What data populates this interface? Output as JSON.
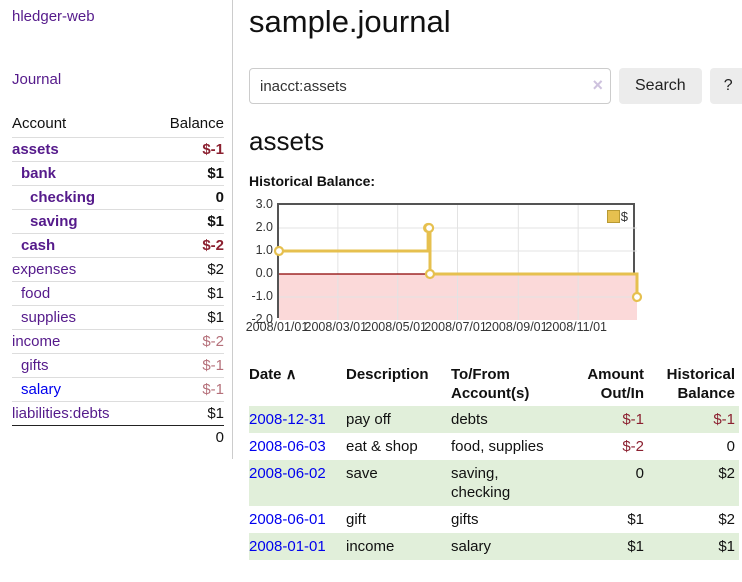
{
  "app": {
    "brand": "hledger-web",
    "nav_journal": "Journal"
  },
  "colors": {
    "link_purple": "#551a8b",
    "link_blue": "#0000ee",
    "negative_strong": "#8b2030",
    "negative_muted": "#b5707a",
    "row_green": "#e1efda",
    "accent_gold": "#e6c04f"
  },
  "sidebar": {
    "header": {
      "account": "Account",
      "balance": "Balance"
    },
    "accounts": [
      {
        "name": "assets",
        "balance": "$-1",
        "indent": 0,
        "bold": true,
        "unvisited": false
      },
      {
        "name": "bank",
        "balance": "$1",
        "indent": 1,
        "bold": true,
        "unvisited": false
      },
      {
        "name": "checking",
        "balance": "0",
        "indent": 2,
        "bold": true,
        "unvisited": false
      },
      {
        "name": "saving",
        "balance": "$1",
        "indent": 2,
        "bold": true,
        "unvisited": false
      },
      {
        "name": "cash",
        "balance": "$-2",
        "indent": 1,
        "bold": true,
        "unvisited": false
      },
      {
        "name": "expenses",
        "balance": "$2",
        "indent": 0,
        "bold": false,
        "unvisited": false
      },
      {
        "name": "food",
        "balance": "$1",
        "indent": 1,
        "bold": false,
        "unvisited": false
      },
      {
        "name": "supplies",
        "balance": "$1",
        "indent": 1,
        "bold": false,
        "unvisited": false
      },
      {
        "name": "income",
        "balance": "$-2",
        "indent": 0,
        "bold": false,
        "unvisited": false
      },
      {
        "name": "gifts",
        "balance": "$-1",
        "indent": 1,
        "bold": false,
        "unvisited": false
      },
      {
        "name": "salary",
        "balance": "$-1",
        "indent": 1,
        "bold": false,
        "unvisited": true
      },
      {
        "name": "liabilities:debts",
        "balance": "$1",
        "indent": 0,
        "bold": false,
        "unvisited": false
      }
    ],
    "total": "0"
  },
  "header": {
    "title": "sample.journal"
  },
  "search": {
    "value": "inacct:assets",
    "clear_icon": "×",
    "button": "Search",
    "help": "?"
  },
  "account_page": {
    "title": "assets",
    "chart_label": "Historical Balance:"
  },
  "chart_data": {
    "type": "line",
    "title": "Historical Balance:",
    "xlim": [
      "2008/01/01",
      "2008/12/31"
    ],
    "ylim": [
      -2,
      3
    ],
    "yticks": [
      "3.0",
      "2.0",
      "1.0",
      "0.0",
      "-1.0",
      "-2.0"
    ],
    "xticks": [
      "2008/01/01",
      "2008/03/01",
      "2008/05/01",
      "2008/07/01",
      "2008/09/01",
      "2008/11/01"
    ],
    "grid": true,
    "legend_position": "top-right",
    "legend": [
      {
        "label": "$",
        "color": "#e6c04f"
      }
    ],
    "negative_fill": "#fbd9d9",
    "zero_line_color": "#8b0000",
    "series": [
      {
        "name": "$",
        "color": "#e6c04f",
        "step": true,
        "points": [
          {
            "x": "2008/01/01",
            "v": 1
          },
          {
            "x": "2008/06/01",
            "v": 2
          },
          {
            "x": "2008/06/02",
            "v": 2
          },
          {
            "x": "2008/06/03",
            "v": 0
          },
          {
            "x": "2008/12/31",
            "v": -1
          }
        ]
      }
    ]
  },
  "register": {
    "columns": [
      {
        "label": "Date",
        "sort_indicator": "∧",
        "align": "left",
        "sortable": true
      },
      {
        "label": "Description",
        "align": "left",
        "sortable": false
      },
      {
        "label": "To/From Account(s)",
        "align": "left",
        "sortable": false
      },
      {
        "label": "Amount Out/In",
        "align": "right",
        "sortable": false
      },
      {
        "label": "Historical Balance",
        "align": "right",
        "sortable": false
      }
    ],
    "rows": [
      {
        "date": "2008-12-31",
        "description": "pay off",
        "accounts": "debts",
        "amount": "$-1",
        "balance": "$-1"
      },
      {
        "date": "2008-06-03",
        "description": "eat & shop",
        "accounts": "food, supplies",
        "amount": "$-2",
        "balance": "0"
      },
      {
        "date": "2008-06-02",
        "description": "save",
        "accounts": "saving, checking",
        "amount": "0",
        "balance": "$2"
      },
      {
        "date": "2008-06-01",
        "description": "gift",
        "accounts": "gifts",
        "amount": "$1",
        "balance": "$2"
      },
      {
        "date": "2008-01-01",
        "description": "income",
        "accounts": "salary",
        "amount": "$1",
        "balance": "$1"
      }
    ]
  }
}
